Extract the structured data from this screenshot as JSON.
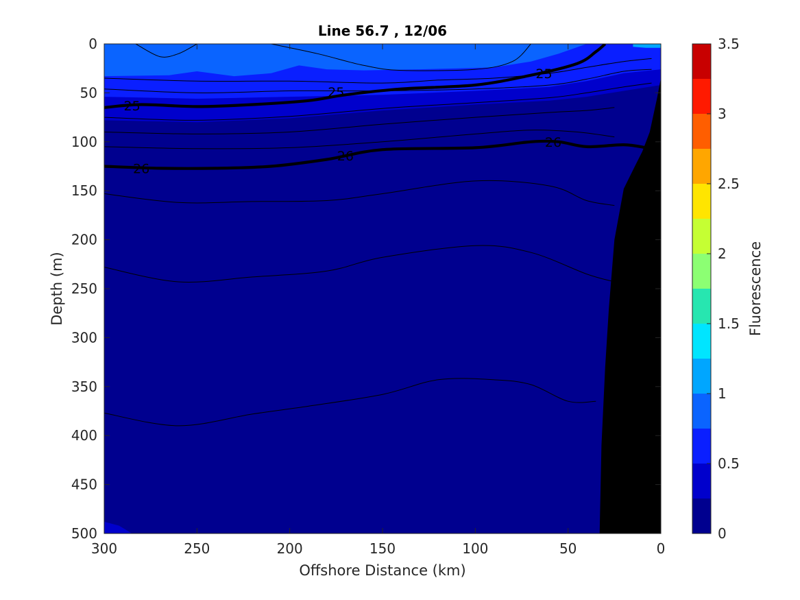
{
  "chart_data": {
    "type": "heatmap",
    "title": "Line 56.7 , 12/06",
    "xlabel": "Offshore Distance (km)",
    "ylabel": "Depth (m)",
    "colorbar_label": "Fluorescence",
    "xlim": [
      300,
      0
    ],
    "ylim": [
      500,
      0
    ],
    "x_reversed": true,
    "y_reversed": true,
    "x_ticks": [
      "300",
      "250",
      "200",
      "150",
      "100",
      "50",
      "0"
    ],
    "y_ticks": [
      "0",
      "50",
      "100",
      "150",
      "200",
      "250",
      "300",
      "350",
      "400",
      "450",
      "500"
    ],
    "colorbar_ticks": [
      "0",
      "0.5",
      "1",
      "1.5",
      "2",
      "2.5",
      "3",
      "3.5"
    ],
    "colorbar_levels": [
      0,
      0.25,
      0.5,
      0.75,
      1,
      1.25,
      1.5,
      1.75,
      2,
      2.25,
      2.5,
      2.75,
      3,
      3.25,
      3.5
    ],
    "colorbar_colors": [
      "#00008f",
      "#0000cc",
      "#0a1fff",
      "#0a64ff",
      "#00a6ff",
      "#00e5ff",
      "#27e6b0",
      "#8cff73",
      "#c5ff33",
      "#ffe500",
      "#ffa600",
      "#ff5e00",
      "#ff1a00",
      "#c80000"
    ],
    "fill_regions": [
      {
        "level": "0-0.25",
        "color": "#00008f",
        "depth_top_m": 75
      },
      {
        "level": "0.25-0.5",
        "color": "#0000cc",
        "depth_range_m": [
          50,
          75
        ]
      },
      {
        "level": "0.5-0.75",
        "color": "#0a1fff",
        "depth_range_m": [
          30,
          55
        ]
      },
      {
        "level": "0.75-1",
        "color": "#0a64ff",
        "depth_range_m": [
          0,
          35
        ]
      }
    ],
    "contours": [
      {
        "label": "25",
        "bold": true,
        "points": [
          [
            300,
            65
          ],
          [
            280,
            62
          ],
          [
            250,
            64
          ],
          [
            220,
            62
          ],
          [
            190,
            58
          ],
          [
            170,
            52
          ],
          [
            140,
            46
          ],
          [
            100,
            42
          ],
          [
            70,
            32
          ],
          [
            45,
            20
          ],
          [
            35,
            8
          ],
          [
            30,
            0
          ]
        ]
      },
      {
        "label": "26",
        "bold": true,
        "points": [
          [
            300,
            125
          ],
          [
            270,
            127
          ],
          [
            240,
            127
          ],
          [
            210,
            125
          ],
          [
            180,
            118
          ],
          [
            150,
            108
          ],
          [
            100,
            106
          ],
          [
            70,
            100
          ],
          [
            55,
            100
          ],
          [
            40,
            105
          ],
          [
            20,
            103
          ],
          [
            8,
            106
          ]
        ]
      },
      {
        "label": "",
        "bold": false,
        "points": [
          [
            300,
            35
          ],
          [
            250,
            38
          ],
          [
            200,
            38
          ],
          [
            150,
            40
          ],
          [
            120,
            37
          ],
          [
            90,
            35
          ],
          [
            60,
            30
          ],
          [
            40,
            24
          ],
          [
            20,
            18
          ],
          [
            5,
            15
          ]
        ]
      },
      {
        "label": "",
        "bold": false,
        "points": [
          [
            300,
            46
          ],
          [
            250,
            50
          ],
          [
            200,
            48
          ],
          [
            150,
            48
          ],
          [
            100,
            46
          ],
          [
            60,
            42
          ],
          [
            40,
            36
          ],
          [
            20,
            28
          ],
          [
            5,
            26
          ]
        ]
      },
      {
        "label": "",
        "bold": false,
        "points": [
          [
            300,
            75
          ],
          [
            250,
            78
          ],
          [
            200,
            74
          ],
          [
            150,
            66
          ],
          [
            100,
            60
          ],
          [
            60,
            55
          ],
          [
            40,
            50
          ],
          [
            20,
            44
          ],
          [
            5,
            40
          ]
        ]
      },
      {
        "label": "",
        "bold": false,
        "points": [
          [
            300,
            90
          ],
          [
            250,
            92
          ],
          [
            200,
            90
          ],
          [
            150,
            82
          ],
          [
            100,
            75
          ],
          [
            60,
            70
          ],
          [
            40,
            68
          ],
          [
            25,
            65
          ]
        ]
      },
      {
        "label": "",
        "bold": false,
        "points": [
          [
            300,
            105
          ],
          [
            250,
            107
          ],
          [
            200,
            106
          ],
          [
            150,
            100
          ],
          [
            100,
            92
          ],
          [
            70,
            88
          ],
          [
            45,
            90
          ],
          [
            25,
            95
          ]
        ]
      },
      {
        "label": "",
        "bold": false,
        "points": [
          [
            300,
            153
          ],
          [
            260,
            162
          ],
          [
            220,
            161
          ],
          [
            180,
            160
          ],
          [
            150,
            153
          ],
          [
            100,
            140
          ],
          [
            60,
            145
          ],
          [
            40,
            160
          ],
          [
            25,
            165
          ]
        ]
      },
      {
        "label": "",
        "bold": false,
        "points": [
          [
            300,
            228
          ],
          [
            260,
            243
          ],
          [
            220,
            238
          ],
          [
            180,
            232
          ],
          [
            150,
            218
          ],
          [
            100,
            206
          ],
          [
            70,
            213
          ],
          [
            40,
            235
          ],
          [
            25,
            243
          ]
        ]
      },
      {
        "label": "",
        "bold": false,
        "points": [
          [
            300,
            377
          ],
          [
            260,
            390
          ],
          [
            220,
            378
          ],
          [
            190,
            370
          ],
          [
            150,
            358
          ],
          [
            120,
            343
          ],
          [
            90,
            343
          ],
          [
            70,
            348
          ],
          [
            50,
            365
          ],
          [
            35,
            365
          ]
        ]
      },
      {
        "label": "",
        "bold": false,
        "points": [
          [
            283,
            0
          ],
          [
            270,
            13
          ],
          [
            260,
            10
          ],
          [
            250,
            0
          ]
        ]
      },
      {
        "label": "",
        "bold": false,
        "points": [
          [
            210,
            0
          ],
          [
            185,
            10
          ],
          [
            160,
            22
          ],
          [
            140,
            27
          ],
          [
            100,
            26
          ],
          [
            80,
            18
          ],
          [
            70,
            0
          ]
        ]
      }
    ],
    "bathymetry": {
      "color": "#000000",
      "points": [
        [
          33,
          500
        ],
        [
          32,
          410
        ],
        [
          30,
          330
        ],
        [
          28,
          270
        ],
        [
          25,
          200
        ],
        [
          20,
          148
        ],
        [
          14,
          125
        ],
        [
          10,
          110
        ],
        [
          6,
          90
        ],
        [
          2,
          55
        ],
        [
          0,
          35
        ]
      ]
    }
  }
}
